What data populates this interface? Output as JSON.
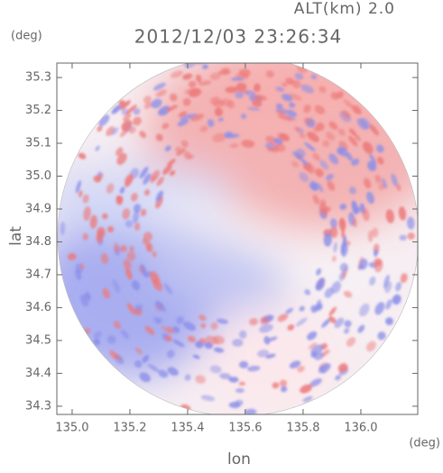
{
  "chart_data": {
    "type": "image",
    "title": "2012/12/03 23:26:34",
    "altitude_label": "ALT(km)  2.0",
    "y_unit": "(deg)",
    "x_unit": "(deg)",
    "xlabel": "lon",
    "ylabel": "lat",
    "xlim": [
      134.947,
      136.197
    ],
    "ylim": [
      34.275,
      35.344
    ],
    "xticks": [
      {
        "value": 135,
        "label": "135.0"
      },
      135.2,
      135.4,
      135.6,
      135.8,
      {
        "value": 136,
        "label": "136.0"
      }
    ],
    "yticks": [
      34.3,
      34.4,
      34.5,
      34.6,
      34.7,
      34.8,
      34.9,
      {
        "value": 35,
        "label": "35.0"
      },
      35.1,
      35.2,
      35.3
    ]
  }
}
